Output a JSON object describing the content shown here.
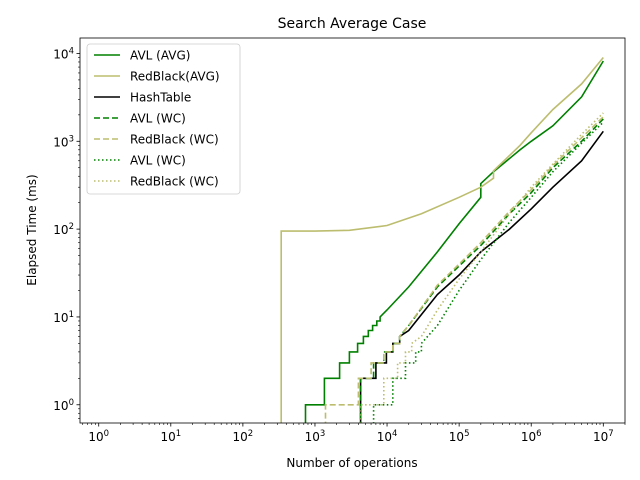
{
  "chart_data": {
    "type": "line",
    "title": "Search Average Case",
    "xlabel": "Number of operations",
    "ylabel": "Elapsed Time (ms)",
    "xscale": "log",
    "yscale": "log",
    "xlim": [
      0.55,
      20000000
    ],
    "ylim": [
      0.62,
      15000
    ],
    "grid": false,
    "legend_position": "top-left",
    "x_ticks": [
      {
        "base": "10",
        "exp": "0",
        "value": 1
      },
      {
        "base": "10",
        "exp": "1",
        "value": 10
      },
      {
        "base": "10",
        "exp": "2",
        "value": 100
      },
      {
        "base": "10",
        "exp": "3",
        "value": 1000
      },
      {
        "base": "10",
        "exp": "4",
        "value": 10000
      },
      {
        "base": "10",
        "exp": "5",
        "value": 100000
      },
      {
        "base": "10",
        "exp": "6",
        "value": 1000000
      },
      {
        "base": "10",
        "exp": "7",
        "value": 10000000
      }
    ],
    "y_ticks": [
      {
        "base": "10",
        "exp": "0",
        "value": 1
      },
      {
        "base": "10",
        "exp": "1",
        "value": 10
      },
      {
        "base": "10",
        "exp": "2",
        "value": 100
      },
      {
        "base": "10",
        "exp": "3",
        "value": 1000
      },
      {
        "base": "10",
        "exp": "4",
        "value": 10000
      }
    ],
    "series": [
      {
        "name": "AVL (AVG)",
        "color": "#008000",
        "style": "solid",
        "points": [
          [
            740,
            0.55
          ],
          [
            740,
            1
          ],
          [
            1350,
            1
          ],
          [
            1350,
            2
          ],
          [
            2200,
            2
          ],
          [
            2200,
            3
          ],
          [
            3000,
            3
          ],
          [
            3000,
            4
          ],
          [
            3900,
            4
          ],
          [
            3900,
            5
          ],
          [
            4700,
            5
          ],
          [
            4700,
            6
          ],
          [
            5500,
            6
          ],
          [
            5500,
            7
          ],
          [
            6300,
            7
          ],
          [
            6300,
            8
          ],
          [
            7200,
            8
          ],
          [
            7200,
            9
          ],
          [
            8000,
            9
          ],
          [
            8000,
            10
          ],
          [
            10000,
            12
          ],
          [
            20000,
            22
          ],
          [
            50000,
            55
          ],
          [
            100000,
            115
          ],
          [
            200000,
            230
          ],
          [
            200000,
            330
          ],
          [
            300000,
            450
          ],
          [
            700000,
            800
          ],
          [
            1000000,
            1000
          ],
          [
            2000000,
            1500
          ],
          [
            5000000,
            3200
          ],
          [
            10000000,
            8200
          ]
        ]
      },
      {
        "name": "RedBlack(AVG)",
        "color": "#bcbd6e",
        "style": "solid",
        "points": [
          [
            340,
            0.55
          ],
          [
            340,
            95
          ],
          [
            1000,
            95
          ],
          [
            3000,
            97
          ],
          [
            10000,
            110
          ],
          [
            30000,
            150
          ],
          [
            100000,
            230
          ],
          [
            200000,
            300
          ],
          [
            300000,
            380
          ],
          [
            300000,
            460
          ],
          [
            700000,
            900
          ],
          [
            1000000,
            1250
          ],
          [
            2000000,
            2300
          ],
          [
            5000000,
            4500
          ],
          [
            10000000,
            9000
          ]
        ]
      },
      {
        "name": "HashTable",
        "color": "#000000",
        "style": "solid",
        "points": [
          [
            4300,
            0.55
          ],
          [
            4300,
            2
          ],
          [
            7000,
            2
          ],
          [
            7000,
            3
          ],
          [
            9800,
            3
          ],
          [
            9800,
            4
          ],
          [
            12000,
            4
          ],
          [
            12000,
            5
          ],
          [
            15000,
            5
          ],
          [
            15000,
            6
          ],
          [
            20000,
            7
          ],
          [
            50000,
            18
          ],
          [
            100000,
            30
          ],
          [
            200000,
            55
          ],
          [
            500000,
            100
          ],
          [
            1000000,
            170
          ],
          [
            2000000,
            300
          ],
          [
            5000000,
            600
          ],
          [
            10000000,
            1300
          ]
        ]
      },
      {
        "name": "AVL (WC)",
        "color": "#008000",
        "style": "dashed",
        "points": [
          [
            4300,
            0.55
          ],
          [
            4300,
            2
          ],
          [
            6500,
            2
          ],
          [
            6500,
            3
          ],
          [
            9000,
            3
          ],
          [
            9000,
            4
          ],
          [
            12000,
            4
          ],
          [
            12000,
            5
          ],
          [
            15000,
            5
          ],
          [
            15000,
            6
          ],
          [
            20000,
            8
          ],
          [
            50000,
            22
          ],
          [
            100000,
            38
          ],
          [
            200000,
            65
          ],
          [
            500000,
            150
          ],
          [
            1000000,
            260
          ],
          [
            2000000,
            500
          ],
          [
            5000000,
            1000
          ],
          [
            10000000,
            1800
          ]
        ]
      },
      {
        "name": "RedBlack (WC)",
        "color": "#bcbd6e",
        "style": "dashed",
        "points": [
          [
            1400,
            0.55
          ],
          [
            1400,
            1
          ],
          [
            4000,
            1
          ],
          [
            4000,
            2
          ],
          [
            6000,
            2
          ],
          [
            6000,
            3
          ],
          [
            9000,
            3
          ],
          [
            9000,
            4
          ],
          [
            12000,
            4
          ],
          [
            12000,
            5
          ],
          [
            15000,
            5
          ],
          [
            15000,
            6
          ],
          [
            20000,
            8
          ],
          [
            50000,
            23
          ],
          [
            100000,
            40
          ],
          [
            200000,
            70
          ],
          [
            500000,
            160
          ],
          [
            1000000,
            280
          ],
          [
            2000000,
            530
          ],
          [
            5000000,
            1100
          ],
          [
            10000000,
            1900
          ]
        ]
      },
      {
        "name": "AVL (WC)",
        "color": "#008000",
        "style": "dotted",
        "points": [
          [
            6500,
            0.55
          ],
          [
            6500,
            1
          ],
          [
            12000,
            1
          ],
          [
            12000,
            2
          ],
          [
            18000,
            2
          ],
          [
            18000,
            3
          ],
          [
            25000,
            3
          ],
          [
            25000,
            4
          ],
          [
            30000,
            4
          ],
          [
            30000,
            5
          ],
          [
            50000,
            8
          ],
          [
            100000,
            20
          ],
          [
            200000,
            45
          ],
          [
            500000,
            120
          ],
          [
            1000000,
            230
          ],
          [
            2000000,
            450
          ],
          [
            5000000,
            950
          ],
          [
            10000000,
            1650
          ]
        ]
      },
      {
        "name": "RedBlack (WC)",
        "color": "#bcbd6e",
        "style": "dotted",
        "points": [
          [
            4200,
            0.55
          ],
          [
            4200,
            1
          ],
          [
            9000,
            1
          ],
          [
            9000,
            2
          ],
          [
            14000,
            2
          ],
          [
            14000,
            3
          ],
          [
            18000,
            3
          ],
          [
            18000,
            4
          ],
          [
            22000,
            4
          ],
          [
            22000,
            5
          ],
          [
            30000,
            6
          ],
          [
            50000,
            12
          ],
          [
            100000,
            27
          ],
          [
            200000,
            55
          ],
          [
            500000,
            150
          ],
          [
            1000000,
            300
          ],
          [
            2000000,
            550
          ],
          [
            5000000,
            1200
          ],
          [
            10000000,
            2100
          ]
        ]
      }
    ]
  }
}
